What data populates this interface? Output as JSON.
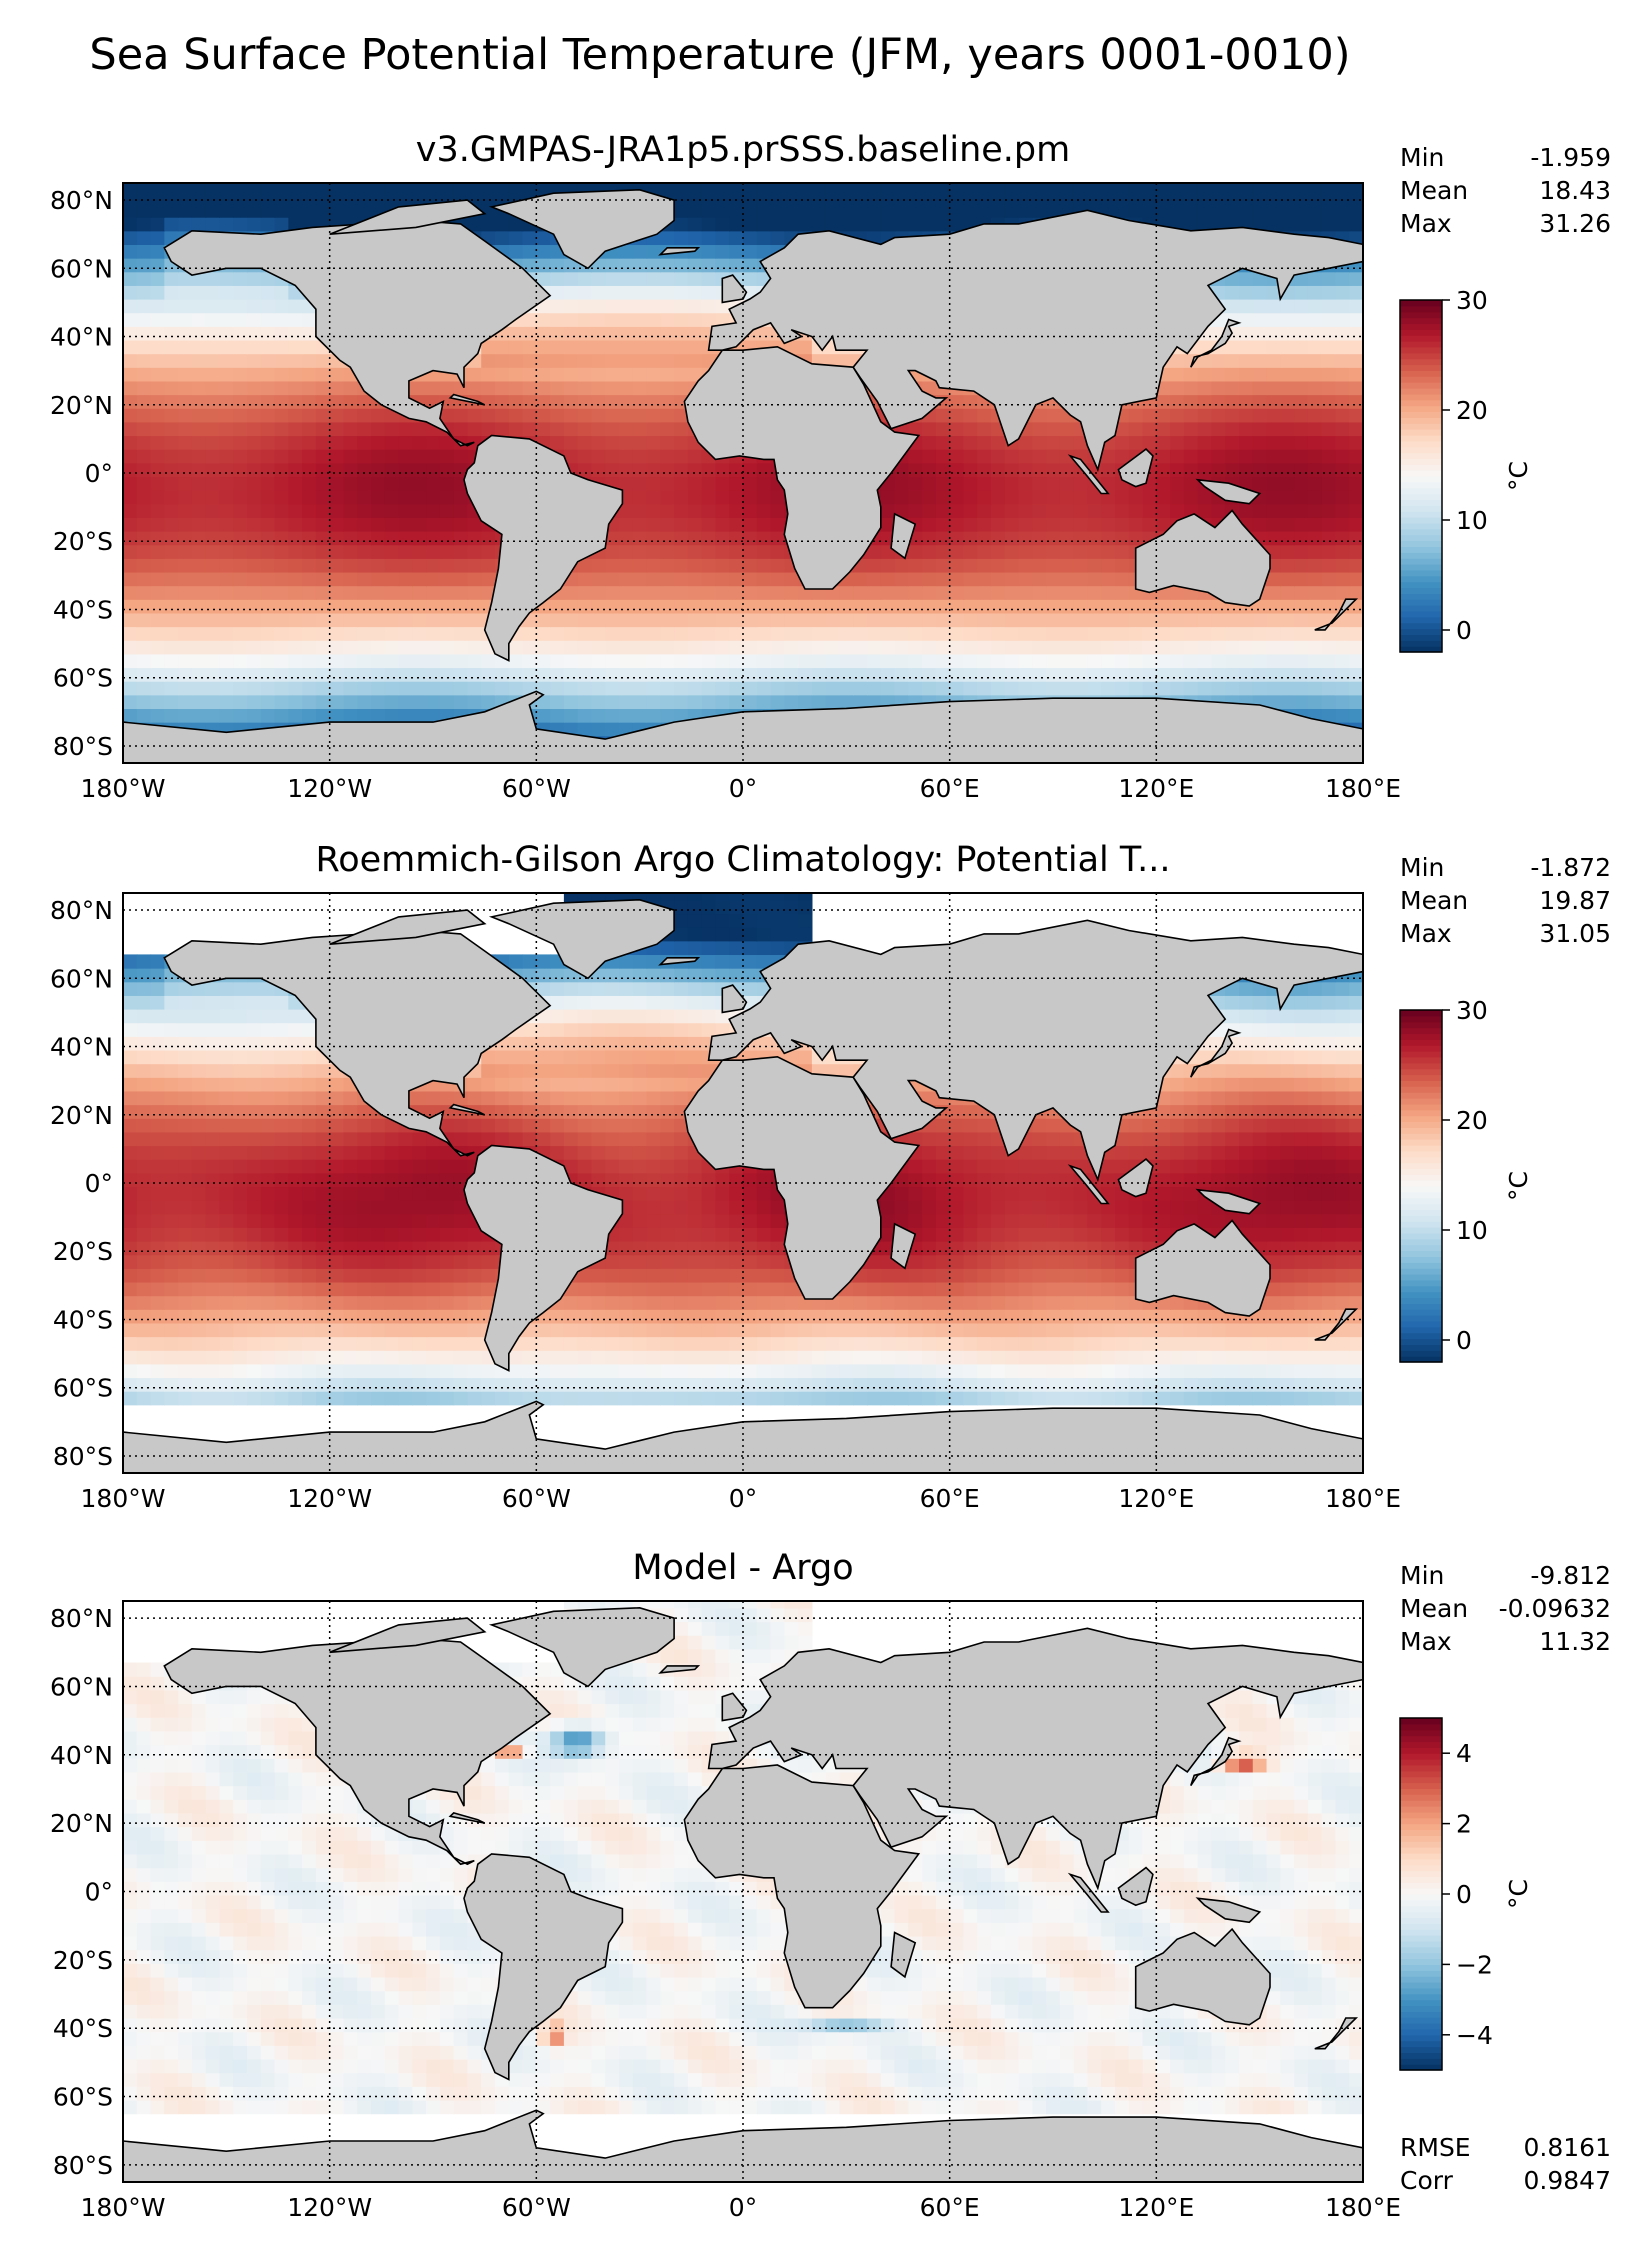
{
  "suptitle": "Sea Surface Potential Temperature (JFM, years 0001-0010)",
  "stat_labels": {
    "min": "Min",
    "mean": "Mean",
    "max": "Max",
    "rmse": "RMSE",
    "corr": "Corr"
  },
  "lon_ticks": [
    "180°W",
    "120°W",
    "60°W",
    "0°",
    "60°E",
    "120°E",
    "180°E"
  ],
  "lat_ticks": [
    "80°N",
    "60°N",
    "40°N",
    "20°N",
    "0°",
    "20°S",
    "40°S",
    "60°S",
    "80°S"
  ],
  "colors": {
    "land": "#c8c8c8",
    "background": "#ffffff",
    "cmap_temp": "RdYlBu_r",
    "cmap_diff": "RdBu_r"
  },
  "chart_data": [
    {
      "type": "heatmap",
      "title": "v3.GMPAS-JRA1p5.prSSS.baseline.pm",
      "xlim": [
        -180,
        180
      ],
      "ylim": [
        -85,
        85
      ],
      "stats": {
        "min": "-1.959",
        "mean": "18.43",
        "max": "31.26"
      },
      "colorbar": {
        "label": "°C",
        "range": [
          -2,
          30
        ],
        "ticks": [
          "0",
          "10",
          "20",
          "30"
        ]
      }
    },
    {
      "type": "heatmap",
      "title": "Roemmich-Gilson Argo Climatology: Potential T...",
      "xlim": [
        -180,
        180
      ],
      "ylim": [
        -85,
        85
      ],
      "stats": {
        "min": "-1.872",
        "mean": "19.87",
        "max": "31.05"
      },
      "colorbar": {
        "label": "°C",
        "range": [
          -2,
          30
        ],
        "ticks": [
          "0",
          "10",
          "20",
          "30"
        ]
      }
    },
    {
      "type": "heatmap",
      "title": "Model - Argo",
      "xlim": [
        -180,
        180
      ],
      "ylim": [
        -85,
        85
      ],
      "stats": {
        "min": "-9.812",
        "mean": "-0.09632",
        "max": "11.32",
        "rmse": "0.8161",
        "corr": "0.9847"
      },
      "colorbar": {
        "label": "°C",
        "range": [
          -5,
          5
        ],
        "ticks": [
          "−4",
          "−2",
          "0",
          "2",
          "4"
        ]
      }
    }
  ]
}
